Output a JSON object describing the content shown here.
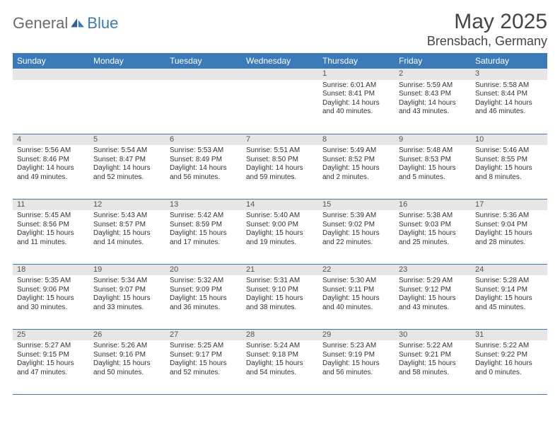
{
  "logo": {
    "general": "General",
    "blue": "Blue"
  },
  "title": "May 2025",
  "location": "Brensbach, Germany",
  "colors": {
    "header_bg": "#3a7ab8",
    "header_text": "#ffffff",
    "daynum_bg": "#e6e6e6",
    "border": "#3a7ab8",
    "logo_gray": "#6c6c6c",
    "logo_blue": "#3a7ab8"
  },
  "weekdays": [
    "Sunday",
    "Monday",
    "Tuesday",
    "Wednesday",
    "Thursday",
    "Friday",
    "Saturday"
  ],
  "weeks": [
    [
      {
        "blank": true
      },
      {
        "blank": true
      },
      {
        "blank": true
      },
      {
        "blank": true
      },
      {
        "n": "1",
        "sr": "Sunrise: 6:01 AM",
        "ss": "Sunset: 8:41 PM",
        "d1": "Daylight: 14 hours",
        "d2": "and 40 minutes."
      },
      {
        "n": "2",
        "sr": "Sunrise: 5:59 AM",
        "ss": "Sunset: 8:43 PM",
        "d1": "Daylight: 14 hours",
        "d2": "and 43 minutes."
      },
      {
        "n": "3",
        "sr": "Sunrise: 5:58 AM",
        "ss": "Sunset: 8:44 PM",
        "d1": "Daylight: 14 hours",
        "d2": "and 46 minutes."
      }
    ],
    [
      {
        "n": "4",
        "sr": "Sunrise: 5:56 AM",
        "ss": "Sunset: 8:46 PM",
        "d1": "Daylight: 14 hours",
        "d2": "and 49 minutes."
      },
      {
        "n": "5",
        "sr": "Sunrise: 5:54 AM",
        "ss": "Sunset: 8:47 PM",
        "d1": "Daylight: 14 hours",
        "d2": "and 52 minutes."
      },
      {
        "n": "6",
        "sr": "Sunrise: 5:53 AM",
        "ss": "Sunset: 8:49 PM",
        "d1": "Daylight: 14 hours",
        "d2": "and 56 minutes."
      },
      {
        "n": "7",
        "sr": "Sunrise: 5:51 AM",
        "ss": "Sunset: 8:50 PM",
        "d1": "Daylight: 14 hours",
        "d2": "and 59 minutes."
      },
      {
        "n": "8",
        "sr": "Sunrise: 5:49 AM",
        "ss": "Sunset: 8:52 PM",
        "d1": "Daylight: 15 hours",
        "d2": "and 2 minutes."
      },
      {
        "n": "9",
        "sr": "Sunrise: 5:48 AM",
        "ss": "Sunset: 8:53 PM",
        "d1": "Daylight: 15 hours",
        "d2": "and 5 minutes."
      },
      {
        "n": "10",
        "sr": "Sunrise: 5:46 AM",
        "ss": "Sunset: 8:55 PM",
        "d1": "Daylight: 15 hours",
        "d2": "and 8 minutes."
      }
    ],
    [
      {
        "n": "11",
        "sr": "Sunrise: 5:45 AM",
        "ss": "Sunset: 8:56 PM",
        "d1": "Daylight: 15 hours",
        "d2": "and 11 minutes."
      },
      {
        "n": "12",
        "sr": "Sunrise: 5:43 AM",
        "ss": "Sunset: 8:57 PM",
        "d1": "Daylight: 15 hours",
        "d2": "and 14 minutes."
      },
      {
        "n": "13",
        "sr": "Sunrise: 5:42 AM",
        "ss": "Sunset: 8:59 PM",
        "d1": "Daylight: 15 hours",
        "d2": "and 17 minutes."
      },
      {
        "n": "14",
        "sr": "Sunrise: 5:40 AM",
        "ss": "Sunset: 9:00 PM",
        "d1": "Daylight: 15 hours",
        "d2": "and 19 minutes."
      },
      {
        "n": "15",
        "sr": "Sunrise: 5:39 AM",
        "ss": "Sunset: 9:02 PM",
        "d1": "Daylight: 15 hours",
        "d2": "and 22 minutes."
      },
      {
        "n": "16",
        "sr": "Sunrise: 5:38 AM",
        "ss": "Sunset: 9:03 PM",
        "d1": "Daylight: 15 hours",
        "d2": "and 25 minutes."
      },
      {
        "n": "17",
        "sr": "Sunrise: 5:36 AM",
        "ss": "Sunset: 9:04 PM",
        "d1": "Daylight: 15 hours",
        "d2": "and 28 minutes."
      }
    ],
    [
      {
        "n": "18",
        "sr": "Sunrise: 5:35 AM",
        "ss": "Sunset: 9:06 PM",
        "d1": "Daylight: 15 hours",
        "d2": "and 30 minutes."
      },
      {
        "n": "19",
        "sr": "Sunrise: 5:34 AM",
        "ss": "Sunset: 9:07 PM",
        "d1": "Daylight: 15 hours",
        "d2": "and 33 minutes."
      },
      {
        "n": "20",
        "sr": "Sunrise: 5:32 AM",
        "ss": "Sunset: 9:09 PM",
        "d1": "Daylight: 15 hours",
        "d2": "and 36 minutes."
      },
      {
        "n": "21",
        "sr": "Sunrise: 5:31 AM",
        "ss": "Sunset: 9:10 PM",
        "d1": "Daylight: 15 hours",
        "d2": "and 38 minutes."
      },
      {
        "n": "22",
        "sr": "Sunrise: 5:30 AM",
        "ss": "Sunset: 9:11 PM",
        "d1": "Daylight: 15 hours",
        "d2": "and 40 minutes."
      },
      {
        "n": "23",
        "sr": "Sunrise: 5:29 AM",
        "ss": "Sunset: 9:12 PM",
        "d1": "Daylight: 15 hours",
        "d2": "and 43 minutes."
      },
      {
        "n": "24",
        "sr": "Sunrise: 5:28 AM",
        "ss": "Sunset: 9:14 PM",
        "d1": "Daylight: 15 hours",
        "d2": "and 45 minutes."
      }
    ],
    [
      {
        "n": "25",
        "sr": "Sunrise: 5:27 AM",
        "ss": "Sunset: 9:15 PM",
        "d1": "Daylight: 15 hours",
        "d2": "and 47 minutes."
      },
      {
        "n": "26",
        "sr": "Sunrise: 5:26 AM",
        "ss": "Sunset: 9:16 PM",
        "d1": "Daylight: 15 hours",
        "d2": "and 50 minutes."
      },
      {
        "n": "27",
        "sr": "Sunrise: 5:25 AM",
        "ss": "Sunset: 9:17 PM",
        "d1": "Daylight: 15 hours",
        "d2": "and 52 minutes."
      },
      {
        "n": "28",
        "sr": "Sunrise: 5:24 AM",
        "ss": "Sunset: 9:18 PM",
        "d1": "Daylight: 15 hours",
        "d2": "and 54 minutes."
      },
      {
        "n": "29",
        "sr": "Sunrise: 5:23 AM",
        "ss": "Sunset: 9:19 PM",
        "d1": "Daylight: 15 hours",
        "d2": "and 56 minutes."
      },
      {
        "n": "30",
        "sr": "Sunrise: 5:22 AM",
        "ss": "Sunset: 9:21 PM",
        "d1": "Daylight: 15 hours",
        "d2": "and 58 minutes."
      },
      {
        "n": "31",
        "sr": "Sunrise: 5:22 AM",
        "ss": "Sunset: 9:22 PM",
        "d1": "Daylight: 16 hours",
        "d2": "and 0 minutes."
      }
    ]
  ]
}
